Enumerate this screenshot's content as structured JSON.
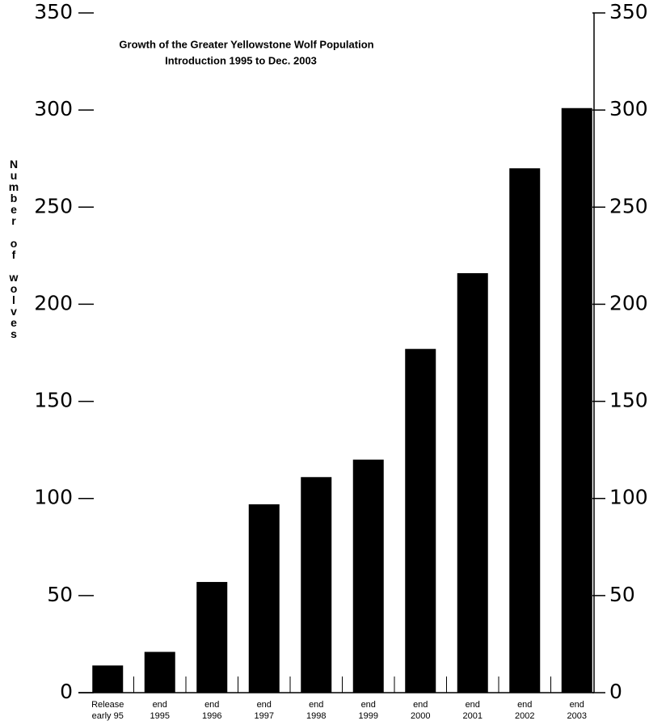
{
  "chart_data": {
    "type": "bar",
    "title": "Growth of the Greater Yellowstone Wolf Population",
    "subtitle": "Introduction 1995 to Dec. 2003",
    "y_label": "Number of wolves",
    "categories": [
      "Release\nearly 95",
      "end\n1995",
      "end\n1996",
      "end\n1997",
      "end\n1998",
      "end\n1999",
      "end\n2000",
      "end\n2001",
      "end\n2002",
      "end\n2003"
    ],
    "values": [
      14,
      21,
      57,
      97,
      111,
      120,
      177,
      216,
      270,
      301
    ],
    "color": "#000000",
    "ylim": [
      0,
      350
    ],
    "yticks": [
      0,
      50,
      100,
      150,
      200,
      250,
      300,
      350
    ],
    "y2lim": [
      0,
      350
    ],
    "y2ticks": [
      0,
      50,
      100,
      150,
      200,
      250,
      300,
      350
    ],
    "grid": false
  }
}
